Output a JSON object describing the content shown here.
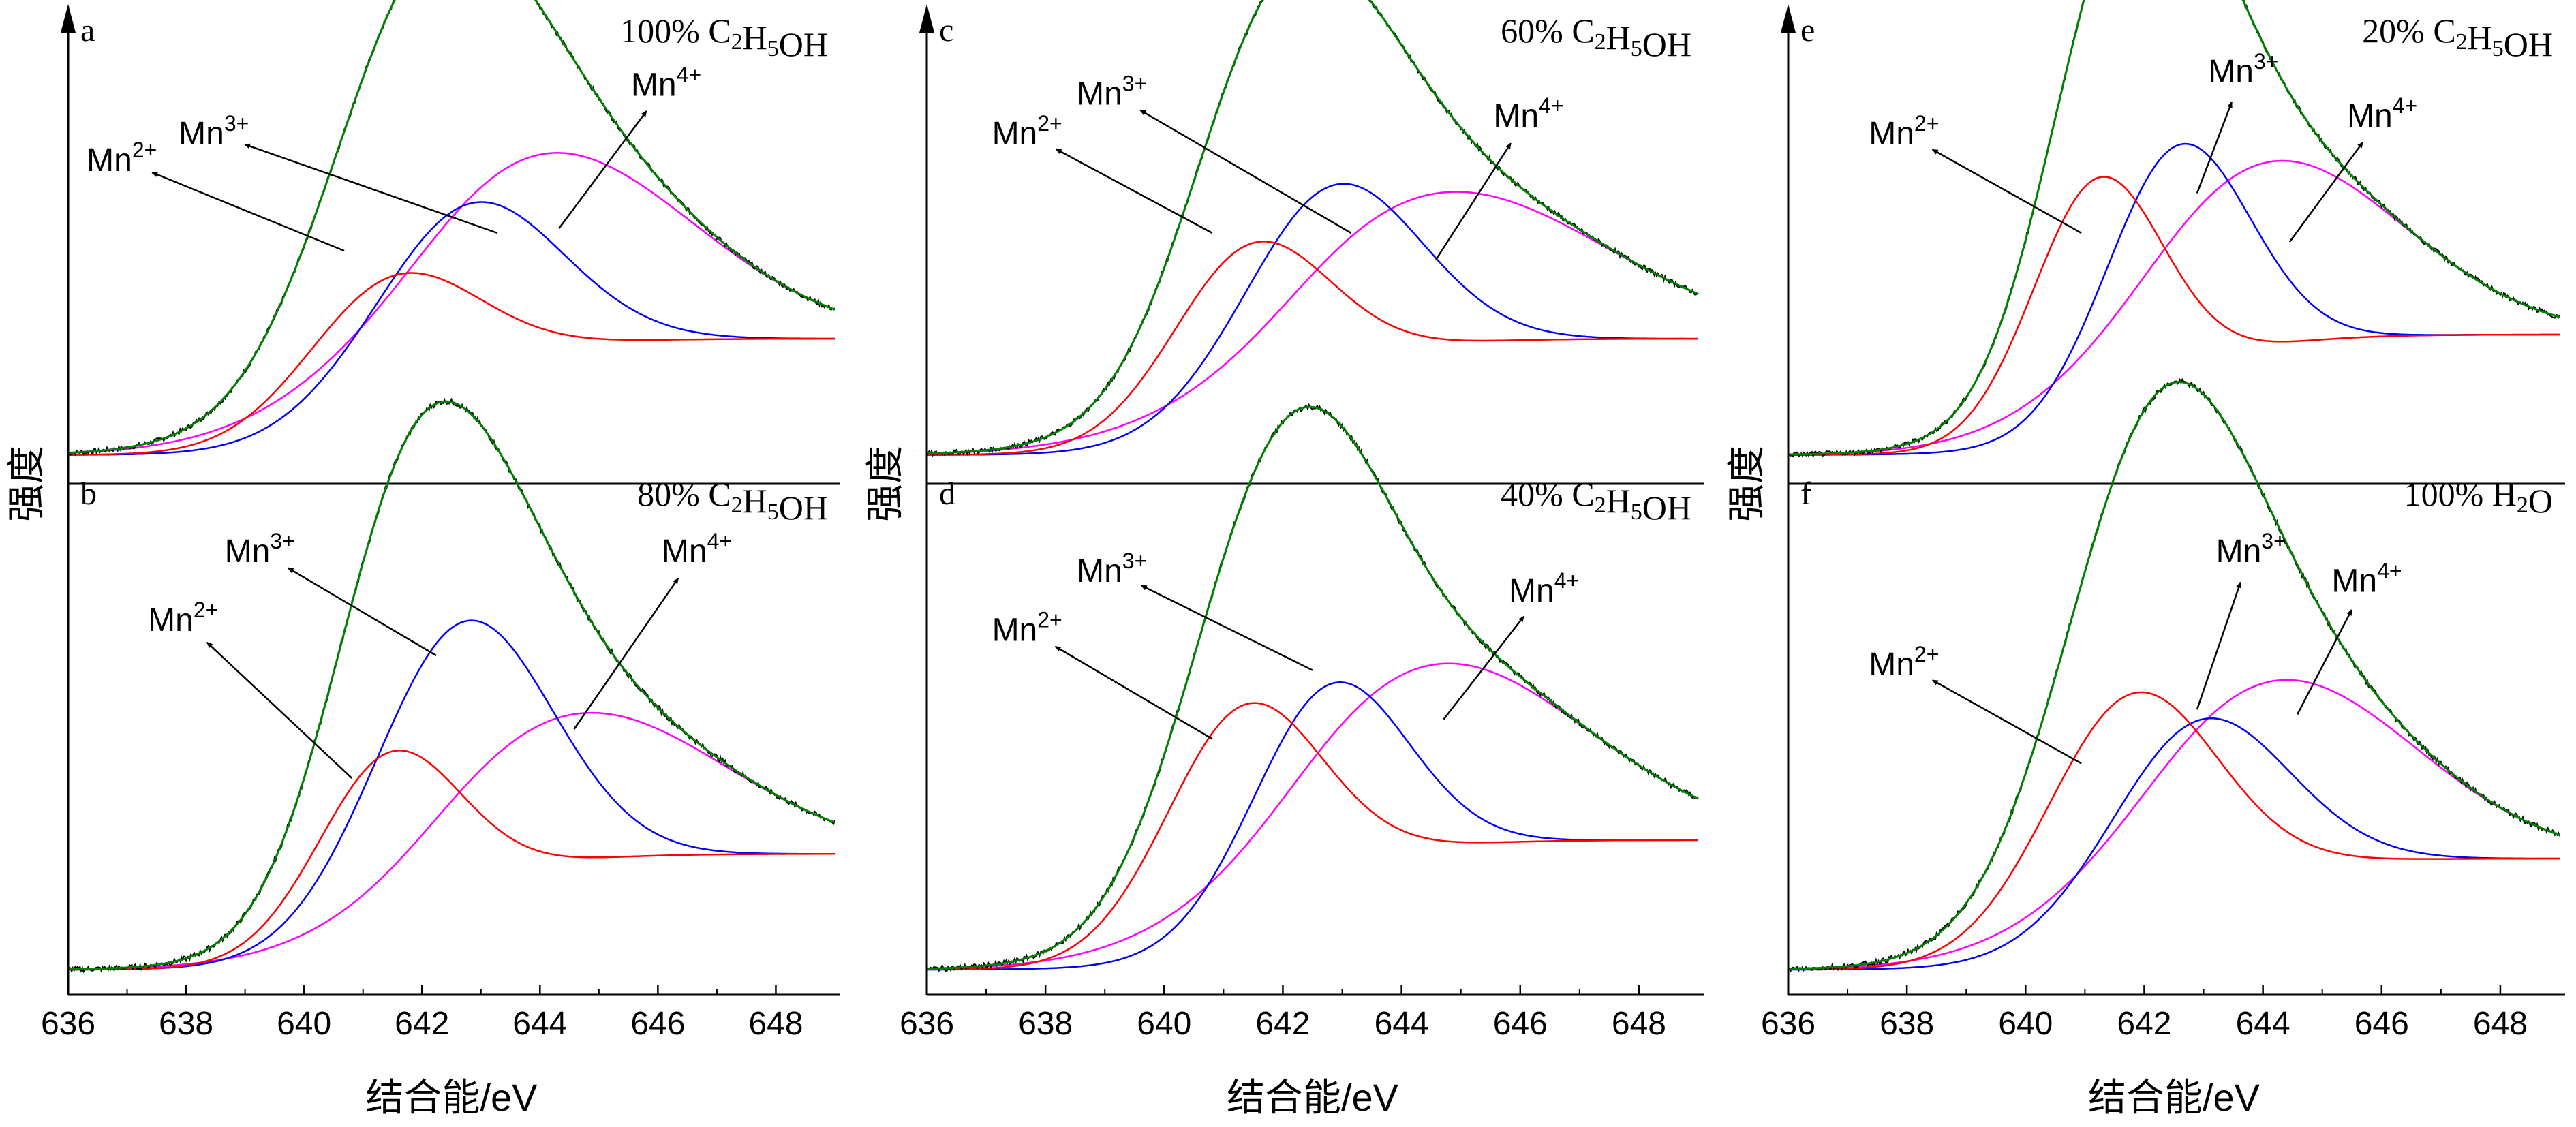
{
  "chart_data": {
    "type": "line",
    "common": {
      "xlabel": "结合能/eV",
      "ylabel": "强度",
      "xlim": [
        636,
        649
      ],
      "xticks": [
        636,
        638,
        640,
        642,
        644,
        646,
        648
      ],
      "xtick_labels": [
        "636",
        "638",
        "640",
        "642",
        "644",
        "646",
        "648"
      ],
      "series_colors": {
        "Mn2+": "#ff0000",
        "Mn3+": "#0000ff",
        "Mn4+": "#ff00ff",
        "fit": "#008000",
        "raw": "#000000"
      }
    },
    "panels": [
      {
        "label": "a",
        "condition": "100% C2H5OH",
        "ylim": [
          0,
          1
        ],
        "baseline": {
          "start": 0.02,
          "end": 0.3
        },
        "components": [
          {
            "name": "Mn2+",
            "center": 641.4,
            "height": 0.35,
            "width": 1.4
          },
          {
            "name": "Mn3+",
            "center": 642.6,
            "height": 0.43,
            "width": 1.6
          },
          {
            "name": "Mn4+",
            "center": 643.9,
            "height": 0.48,
            "width": 2.6
          }
        ]
      },
      {
        "label": "b",
        "condition": "80% C2H5OH",
        "ylim": [
          0,
          1
        ],
        "baseline": {
          "start": 0.01,
          "end": 0.26
        },
        "components": [
          {
            "name": "Mn2+",
            "center": 641.4,
            "height": 0.4,
            "width": 1.2
          },
          {
            "name": "Mn3+",
            "center": 642.6,
            "height": 0.6,
            "width": 1.5
          },
          {
            "name": "Mn4+",
            "center": 644.6,
            "height": 0.32,
            "width": 2.5
          }
        ]
      },
      {
        "label": "c",
        "condition": "60% C2H5OH",
        "ylim": [
          0,
          1
        ],
        "baseline": {
          "start": 0.02,
          "end": 0.3
        },
        "components": [
          {
            "name": "Mn2+",
            "center": 641.4,
            "height": 0.43,
            "width": 1.3
          },
          {
            "name": "Mn3+",
            "center": 642.7,
            "height": 0.47,
            "width": 1.5
          },
          {
            "name": "Mn4+",
            "center": 644.6,
            "height": 0.37,
            "width": 2.8
          }
        ]
      },
      {
        "label": "d",
        "condition": "40% C2H5OH",
        "ylim": [
          0,
          1
        ],
        "baseline": {
          "start": 0.01,
          "end": 0.29
        },
        "components": [
          {
            "name": "Mn2+",
            "center": 641.3,
            "height": 0.5,
            "width": 1.3
          },
          {
            "name": "Mn3+",
            "center": 642.7,
            "height": 0.44,
            "width": 1.3
          },
          {
            "name": "Mn4+",
            "center": 644.5,
            "height": 0.4,
            "width": 2.6
          }
        ]
      },
      {
        "label": "e",
        "condition": "20% C2H5OH",
        "ylim": [
          0,
          1
        ],
        "baseline": {
          "start": 0.02,
          "end": 0.31
        },
        "components": [
          {
            "name": "Mn2+",
            "center": 641.2,
            "height": 0.6,
            "width": 1.1
          },
          {
            "name": "Mn3+",
            "center": 642.5,
            "height": 0.58,
            "width": 1.2
          },
          {
            "name": "Mn4+",
            "center": 644.0,
            "height": 0.45,
            "width": 2.3
          }
        ]
      },
      {
        "label": "f",
        "condition": "100% H2O",
        "ylim": [
          0,
          1
        ],
        "baseline": {
          "start": 0.01,
          "end": 0.25
        },
        "components": [
          {
            "name": "Mn2+",
            "center": 641.7,
            "height": 0.51,
            "width": 1.4
          },
          {
            "name": "Mn3+",
            "center": 642.8,
            "height": 0.38,
            "width": 1.5
          },
          {
            "name": "Mn4+",
            "center": 644.1,
            "height": 0.41,
            "width": 2.4
          }
        ]
      }
    ],
    "annotations": {
      "Mn2+": {
        "base": "Mn",
        "sup": "2+"
      },
      "Mn3+": {
        "base": "Mn",
        "sup": "3+"
      },
      "Mn4+": {
        "base": "Mn",
        "sup": "4+"
      }
    }
  }
}
